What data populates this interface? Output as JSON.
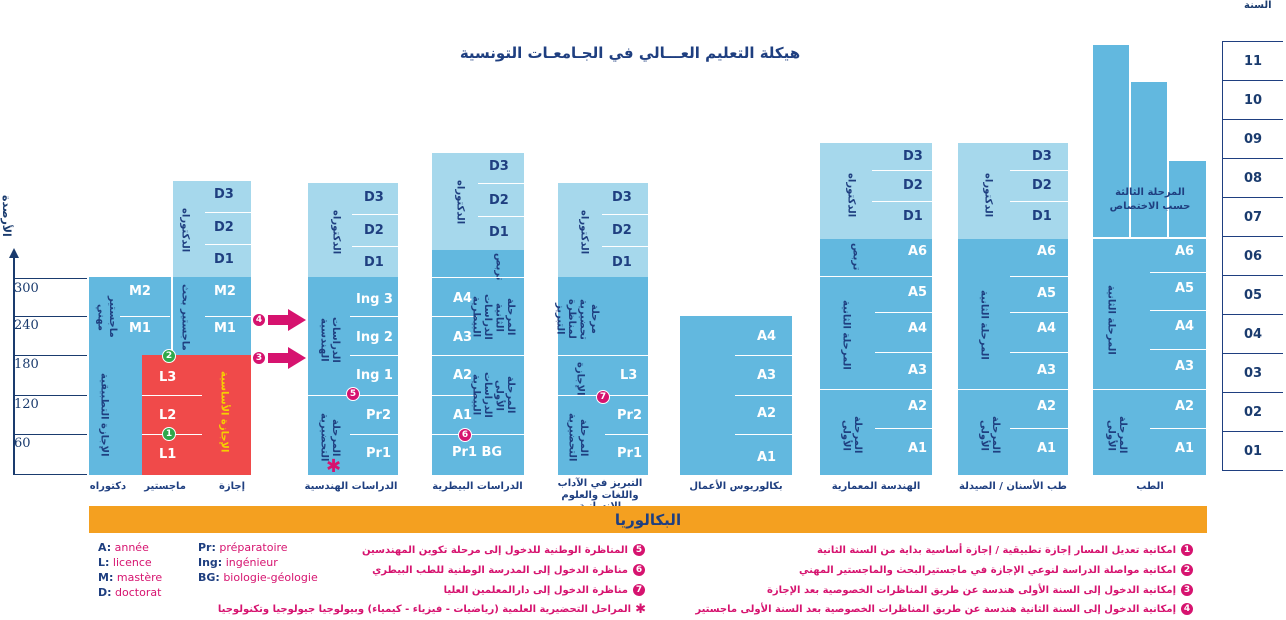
{
  "title": "هيكلة التعليم العـــالي في الجـامعـات التونسية",
  "year_label": "السنة",
  "years": [
    "11",
    "10",
    "09",
    "08",
    "07",
    "06",
    "05",
    "04",
    "03",
    "02",
    "01"
  ],
  "credits_label": "الأرصدة",
  "credits": [
    "300",
    "240",
    "180",
    "120",
    "60"
  ],
  "bac": "البكالوريا",
  "col_licence": {
    "labels": {
      "doctorat": "دكتوراه",
      "mastere": "ماجستير",
      "licence": "إجازة"
    },
    "D": [
      "D3",
      "D2",
      "D1"
    ],
    "M": [
      "M2",
      "M1"
    ],
    "L": [
      "L3",
      "L2",
      "L1"
    ],
    "doctorat_v": "الدكتوراه",
    "mastere_rech": "ماجستير بحث",
    "mastere_pro": "ماجستير مهني",
    "licence_app": "الإجازة التطبيقية",
    "licence_fond": "الإجازة الأساسية"
  },
  "col_ing": {
    "label": "الدراسات الهندسية",
    "D": [
      "D3",
      "D2",
      "D1"
    ],
    "Ing": [
      "Ing 3",
      "Ing 2",
      "Ing 1"
    ],
    "Pr": [
      "Pr2",
      "Pr1"
    ],
    "doctorat_v": "الدكتوراه",
    "cycle_v": "الدراسات الهندسية",
    "prep_v": "المرحلة التحضيرية"
  },
  "col_bio": {
    "label": "الدراسات البيطرية",
    "D": [
      "D3",
      "D2",
      "D1"
    ],
    "A": [
      "A4",
      "A3",
      "A2",
      "A1"
    ],
    "bottom": "Pr1 BG",
    "doctorat_v": "الدكتوراه",
    "stage_v": "تربص",
    "second_v": "المرحلة الثانية الدراسات البيطرية",
    "first_v": "المرحلة الأولى الدراسات البيطرية"
  },
  "col_agreg": {
    "label_l1": "التبريز في الآداب",
    "label_l2": "واللغات والعلوم الانسانية",
    "D": [
      "D3",
      "D2",
      "D1"
    ],
    "L3": "L3",
    "Pr": [
      "Pr2",
      "Pr1"
    ],
    "doctorat_v": "الدكتوراه",
    "agreg_prep_v": "مرحلة تحضيرية لمناظرة التبريز",
    "licence_v": "الإجازة",
    "prep_v": "المرحلة التحضيرية"
  },
  "col_business": {
    "label": "بكالوريوس الأعمال",
    "A": [
      "A4",
      "A3",
      "A2",
      "A1"
    ]
  },
  "col_archi": {
    "label": "الهندسة المعمارية",
    "D": [
      "D3",
      "D2",
      "D1"
    ],
    "A": [
      "A6",
      "A5",
      "A4",
      "A3",
      "A2",
      "A1"
    ],
    "doctorat_v": "الدكتوراه",
    "stage_v": "تربص",
    "second_v": "المرحلة الثانية",
    "first_v": "المرحلة الأولى"
  },
  "col_dent": {
    "label": "طب الأسنان / الصيدلة",
    "D": [
      "D3",
      "D2",
      "D1"
    ],
    "A": [
      "A6",
      "A5",
      "A4",
      "A3",
      "A2",
      "A1"
    ],
    "doctorat_v": "الدكتوراه",
    "second_v": "المرحلة الثانية",
    "first_v": "المرحلة الأولى"
  },
  "col_med": {
    "label": "الطب",
    "third_l1": "المرحلة الثالثة",
    "third_l2": "حسب الاختصاص",
    "A": [
      "A6",
      "A5",
      "A4",
      "A3",
      "A2",
      "A1"
    ],
    "second_v": "المرحلة الثانية",
    "first_v": "المرحلة الأولى"
  },
  "markers": [
    "1",
    "2",
    "3",
    "4",
    "5",
    "6",
    "7"
  ],
  "legend_right": [
    {
      "n": "1",
      "text": "امكانية تعديل المسار إجازة تطبيقية / إجازة أساسية بداية من السنة الثانية"
    },
    {
      "n": "2",
      "text": "امكانية مواصلة الدراسة لنوعي الإجازة في ماجستيرالبحث والماجستير المهني"
    },
    {
      "n": "3",
      "text": "إمكانية الدخول إلى السنة الأولى هندسة عن طريق المناظرات الخصوصية بعد الإجازة"
    },
    {
      "n": "4",
      "text": "إمكانية الدخول إلى السنة الثانية هندسة عن طريق المناظرات الخصوصية بعد السنة الأولى ماجستير"
    }
  ],
  "legend_mid": [
    {
      "n": "5",
      "text": "المناظرة الوطنية للدخول إلى مرحلة تكوين المهندسين"
    },
    {
      "n": "6",
      "text": "مناظرة الدخول إلى المدرسة الوطنية للطب البيطري"
    },
    {
      "n": "7",
      "text": "مناظرة الدخول إلى دارالمعلمين العليا"
    },
    {
      "n": "✱",
      "text": "المراحل التحضيرية العلمية (رياضيات - فيزياء - كيمياء) وبيولوجيا جيولوجيا وتكنولوجيا"
    }
  ],
  "legend_left": [
    {
      "k": "A:",
      "v": "année"
    },
    {
      "k": "L:",
      "v": "licence"
    },
    {
      "k": "M:",
      "v": "mastère"
    },
    {
      "k": "D:",
      "v": "doctorat"
    },
    {
      "k": "Pr:",
      "v": "préparatoire"
    },
    {
      "k": "Ing:",
      "v": "ingénieur"
    },
    {
      "k": "BG:",
      "v": "biologie-géologie"
    }
  ],
  "colors": {
    "light": "#a6d8ec",
    "mid": "#62b8df",
    "red": "#f04a4a",
    "orange": "#f4a020",
    "magenta": "#d6136f",
    "green": "#2fa84a",
    "navy": "#1f3f80"
  }
}
